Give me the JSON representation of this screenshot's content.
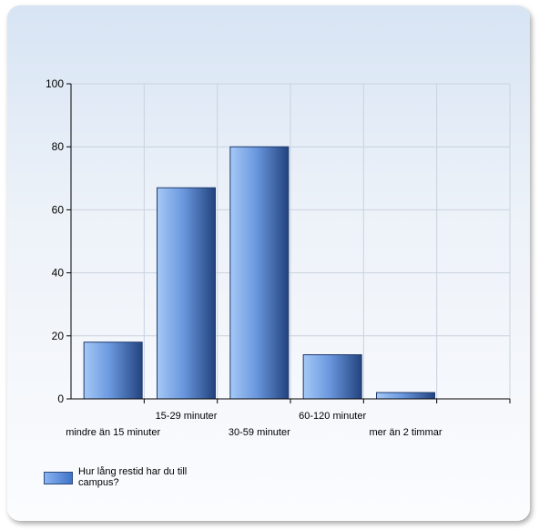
{
  "chart_data": {
    "type": "bar",
    "categories": [
      "mindre än 15 minuter",
      "15-29 minuter",
      "30-59 minuter",
      "60-120 minuter",
      "mer än 2 timmar"
    ],
    "series": [
      {
        "name": "Hur lång restid har du till campus?",
        "values": [
          18,
          67,
          80,
          14,
          2
        ]
      }
    ],
    "ylim": [
      0,
      100
    ],
    "yticks": [
      0,
      20,
      40,
      60,
      80,
      100
    ],
    "grid": true,
    "legend": "bottom-left",
    "colors": {
      "bar_light": "#9cc2f4",
      "bar_mid": "#5f8fdc",
      "bar_dark": "#2c4f8c"
    }
  },
  "legend": {
    "label": "Hur lång restid har du till campus?"
  }
}
